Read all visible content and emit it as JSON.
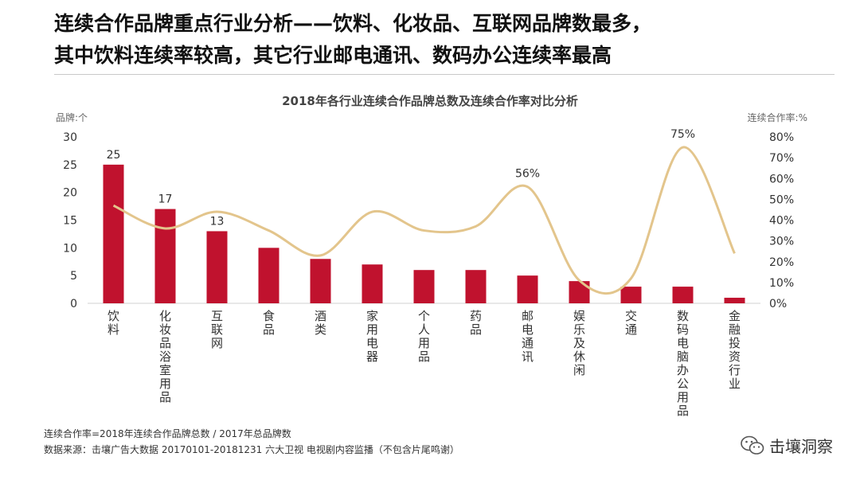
{
  "headline": {
    "line1": "连续合作品牌重点行业分析——饮料、化妆品、互联网品牌数最多，",
    "line2": "其中饮料连续率较高，其它行业邮电通讯、数码办公连续率最高"
  },
  "chart_data": {
    "type": "bar",
    "title": "2018年各行业连续合作品牌总数及连续合作率对比分析",
    "ylabel": "品牌:个",
    "y2label": "连续合作率:%",
    "ylim": [
      0,
      30
    ],
    "yticks": [
      0,
      5,
      10,
      15,
      20,
      25,
      30
    ],
    "y2lim": [
      0,
      80
    ],
    "y2ticks": [
      "0%",
      "10%",
      "20%",
      "30%",
      "40%",
      "50%",
      "60%",
      "70%",
      "80%"
    ],
    "categories": [
      "饮料",
      "化妆品浴室用品",
      "互联网",
      "食品",
      "酒类",
      "家用电器",
      "个人用品",
      "药品",
      "邮电通讯",
      "娱乐及休闲",
      "交通",
      "数码电脑办公用品",
      "金融投资行业"
    ],
    "series": [
      {
        "values": [
          25,
          17,
          13,
          10,
          8,
          7,
          6,
          6,
          5,
          4,
          3,
          3,
          1
        ],
        "color": "#c0122e",
        "labels": [
          "25",
          "17",
          "13",
          "",
          "",
          "",
          "",
          "",
          "",
          "",
          "",
          "",
          ""
        ]
      },
      {
        "values": [
          47,
          36,
          44,
          35,
          23,
          44,
          35,
          37,
          56,
          11,
          12,
          75,
          24
        ],
        "color": "#e3c58c",
        "labels": [
          "",
          "",
          "",
          "",
          "",
          "",
          "",
          "",
          "56%",
          "",
          "",
          "75%",
          ""
        ]
      }
    ],
    "grid": false
  },
  "footnotes": {
    "definition": "连续合作率=2018年连续合作品牌总数 / 2017年总品牌数",
    "source": "数据来源：击壤广告大数据 20170101-20181231 六大卫视 电视剧内容监播（不包含片尾鸣谢）"
  },
  "brand": {
    "name": "击壤洞察",
    "icon": "wechat-icon"
  }
}
